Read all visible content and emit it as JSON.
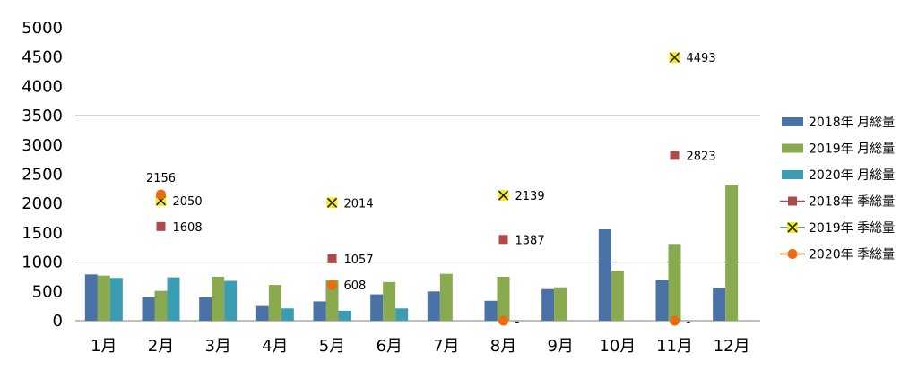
{
  "chart_data": {
    "type": "bar",
    "categories": [
      "1月",
      "2月",
      "3月",
      "4月",
      "5月",
      "6月",
      "7月",
      "8月",
      "9月",
      "10月",
      "11月",
      "12月"
    ],
    "ylim": [
      0,
      5000
    ],
    "yticks": [
      0,
      500,
      1000,
      1500,
      2000,
      2500,
      3000,
      3500,
      4000,
      4500,
      5000
    ],
    "gridlines": [
      1000,
      3500
    ],
    "legend_position": "right",
    "series": [
      {
        "name": "2018年 月総量",
        "kind": "bar",
        "color": "#4a72a6",
        "values": [
          790,
          400,
          400,
          250,
          330,
          450,
          500,
          340,
          540,
          1560,
          690,
          560
        ]
      },
      {
        "name": "2019年 月総量",
        "kind": "bar",
        "color": "#8aaa4f",
        "values": [
          770,
          510,
          750,
          610,
          700,
          660,
          800,
          750,
          570,
          850,
          1310,
          2310
        ]
      },
      {
        "name": "2020年 月総量",
        "kind": "bar",
        "color": "#3c9cb2",
        "values": [
          730,
          740,
          680,
          210,
          170,
          210,
          null,
          null,
          null,
          null,
          null,
          null
        ]
      },
      {
        "name": "2018年 季総量",
        "kind": "marker",
        "marker": "square",
        "color": "#b04a48",
        "values": [
          null,
          1608,
          null,
          null,
          1057,
          null,
          null,
          1387,
          null,
          null,
          2823,
          null
        ],
        "labels": [
          null,
          "1608",
          null,
          null,
          "1057",
          null,
          null,
          "1387",
          null,
          null,
          "2823",
          null
        ]
      },
      {
        "name": "2019年 季総量",
        "kind": "marker",
        "marker": "x",
        "color": "#f2ea2a",
        "values": [
          null,
          2050,
          null,
          null,
          2014,
          null,
          null,
          2139,
          null,
          null,
          4493,
          null
        ],
        "labels": [
          null,
          "2050",
          null,
          null,
          "2014",
          null,
          null,
          "2139",
          null,
          null,
          "4493",
          null
        ]
      },
      {
        "name": "2020年 季総量",
        "kind": "marker",
        "marker": "circle",
        "color": "#ec6b12",
        "values": [
          null,
          2156,
          null,
          null,
          608,
          null,
          null,
          0,
          null,
          null,
          0,
          null
        ],
        "labels": [
          null,
          "2156",
          null,
          null,
          "608",
          null,
          null,
          "-",
          null,
          null,
          "-",
          null
        ]
      }
    ]
  }
}
